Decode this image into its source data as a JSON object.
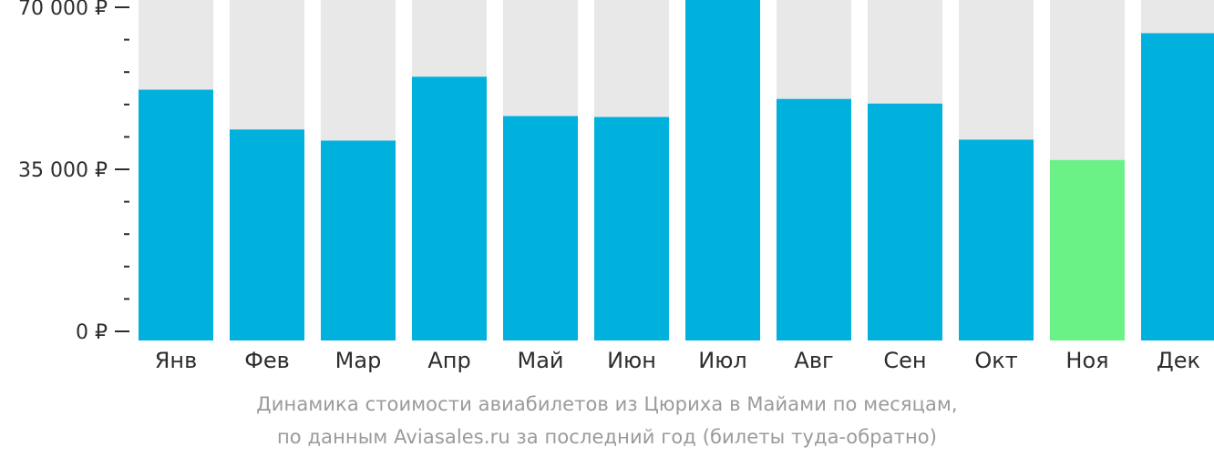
{
  "chart_data": {
    "type": "bar",
    "categories": [
      "Янв",
      "Фев",
      "Мар",
      "Апр",
      "Май",
      "Июн",
      "Июл",
      "Авг",
      "Сен",
      "Окт",
      "Ноя",
      "Дек"
    ],
    "values": [
      52200,
      43600,
      41200,
      55000,
      46500,
      46300,
      72900,
      50200,
      49200,
      41400,
      37000,
      64400
    ],
    "ylim": [
      0,
      75000
    ],
    "yticks": [
      {
        "value": 70000,
        "label": "70 000 ₽"
      },
      {
        "value": 35000,
        "label": "35 000 ₽"
      },
      {
        "value": 0,
        "label": "0 ₽"
      }
    ],
    "minor_tick_step": 7000,
    "highlight_category": "Ноя",
    "colors": {
      "bar": "#00b0dd",
      "highlight": "#6af287",
      "background_bar": "#e8e8e8",
      "text": "#2d2d2d",
      "caption": "#9a9a9a"
    },
    "title": "",
    "xlabel": "",
    "ylabel": ""
  },
  "caption": {
    "line1": "Динамика стоимости авиабилетов из Цюриха в Майами по месяцам,",
    "line2": "по данным Aviasales.ru за последний год (билеты туда-обратно)"
  }
}
